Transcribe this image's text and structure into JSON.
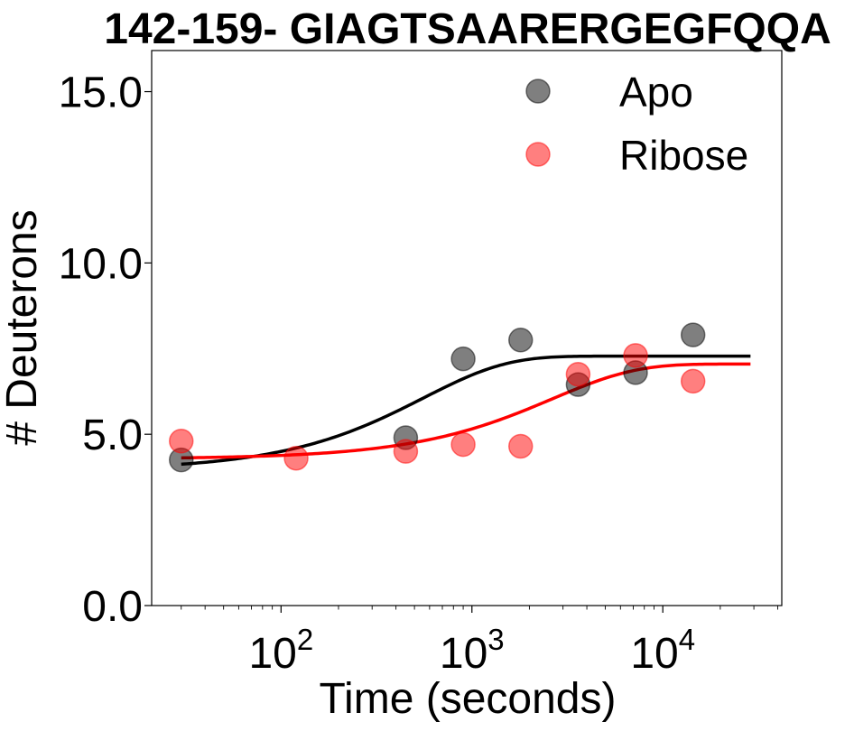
{
  "chart_data": {
    "type": "scatter",
    "title": "142-159- GIAGTSAARERGEGFQQA",
    "xlabel": "Time (seconds)",
    "ylabel": "# Deuterons",
    "xscale": "log",
    "xlim": [
      21,
      42000
    ],
    "ylim": [
      0,
      16.2
    ],
    "x_ticks": [
      {
        "value": 100,
        "base": "10",
        "exp": "2"
      },
      {
        "value": 1000,
        "base": "10",
        "exp": "3"
      },
      {
        "value": 10000,
        "base": "10",
        "exp": "4"
      }
    ],
    "y_ticks": [
      {
        "value": 0,
        "label": "0.0"
      },
      {
        "value": 5,
        "label": "5.0"
      },
      {
        "value": 10,
        "label": "10.0"
      },
      {
        "value": 15,
        "label": "15.0"
      }
    ],
    "legend": {
      "position": "top-right"
    },
    "grid": false,
    "series": [
      {
        "name": "Apo",
        "color": "#000000",
        "x": [
          30,
          450,
          900,
          1800,
          3600,
          7200,
          14400
        ],
        "y": [
          4.25,
          4.9,
          7.2,
          7.75,
          6.45,
          6.8,
          7.9
        ],
        "fit": {
          "x_start": 30,
          "x_end": 28800,
          "y0": 3.95,
          "plateau": 7.28,
          "k": 0.0018
        }
      },
      {
        "name": "Ribose",
        "color": "#ff0000",
        "x": [
          30,
          120,
          450,
          900,
          1800,
          3600,
          7200,
          14400
        ],
        "y": [
          4.8,
          4.3,
          4.5,
          4.7,
          4.65,
          6.75,
          7.3,
          6.55
        ],
        "fit": {
          "x_start": 30,
          "x_end": 28800,
          "y0": 4.28,
          "plateau": 7.05,
          "k": 0.00038
        }
      }
    ]
  }
}
